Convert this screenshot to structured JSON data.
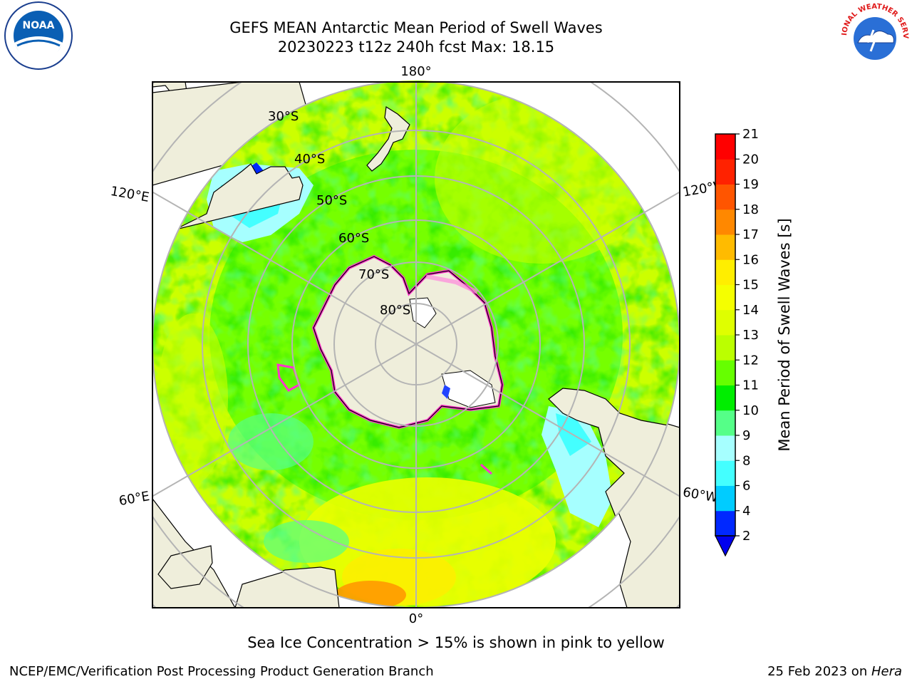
{
  "header": {
    "title": "GEFS MEAN Antarctic Mean Period of Swell Waves",
    "subtitle": "20230223 t12z 240h fcst   Max: 18.15"
  },
  "map": {
    "projection": "south-polar-stereographic",
    "meridian_labels": [
      "180°",
      "0°",
      "120°E",
      "120°W",
      "60°E",
      "60°W"
    ],
    "parallel_labels": [
      "30°S",
      "40°S",
      "50°S",
      "60°S",
      "70°S",
      "80°S"
    ],
    "colors": {
      "land": "#efeedb",
      "coast": "#000000",
      "grid": "#b4b4b4",
      "ice_edge": "#ff33cc"
    }
  },
  "colorbar": {
    "label": "Mean Period of Swell Waves [s]",
    "ticks": [
      "2",
      "4",
      "6",
      "8",
      "9",
      "10",
      "11",
      "12",
      "13",
      "14",
      "15",
      "16",
      "17",
      "18",
      "19",
      "20",
      "21"
    ],
    "colors": [
      "#0028ff",
      "#00ccff",
      "#44ffff",
      "#a6ffff",
      "#55ff88",
      "#00ee00",
      "#66ff00",
      "#bbff00",
      "#dfff00",
      "#f5ff00",
      "#ffee00",
      "#ffbb00",
      "#ff8800",
      "#ff5500",
      "#ff2200",
      "#ff0000"
    ],
    "extend_color": "#0000ee"
  },
  "note": "Sea Ice Concentration > 15% is shown in pink to yellow",
  "footer": {
    "left": "NCEP/EMC/Verification Post Processing Product Generation Branch",
    "right_prefix": "25 Feb 2023 on ",
    "right_host": "Hera"
  },
  "logos": {
    "noaa_text": "NOAA",
    "nws_text": "NATIONAL WEATHER SERVICE"
  }
}
